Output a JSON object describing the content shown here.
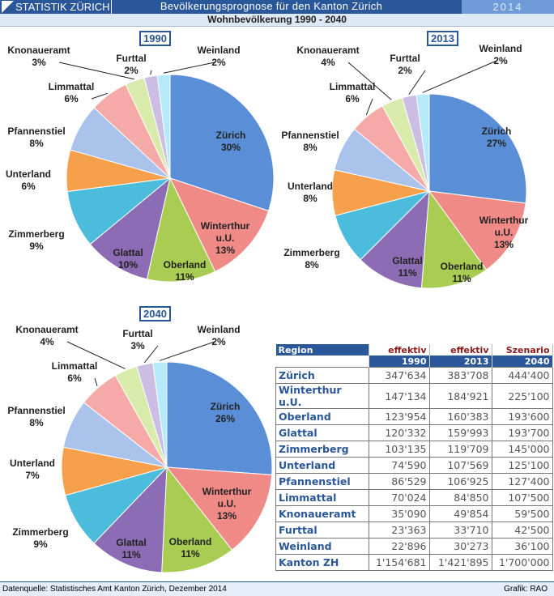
{
  "header": {
    "brand": "STATISTIK ZÜRICH",
    "title": "Bevölkerungsprognose für den Kanton Zürich",
    "year": "2014",
    "subtitle": "Wohnbevölkerung 1990 - 2040"
  },
  "chart_data": [
    {
      "type": "pie",
      "title": "1990",
      "categories": [
        "Zürich",
        "Winterthur u.U.",
        "Oberland",
        "Glattal",
        "Zimmerberg",
        "Unterland",
        "Pfannenstiel",
        "Limmattal",
        "Knonaueramt",
        "Furttal",
        "Weinland"
      ],
      "values": [
        347634,
        147134,
        123954,
        120332,
        103135,
        74590,
        86529,
        70024,
        35090,
        23363,
        22896
      ],
      "labels": [
        "30%",
        "13%",
        "11%",
        "10%",
        "9%",
        "6%",
        "8%",
        "6%",
        "3%",
        "2%",
        "2%"
      ]
    },
    {
      "type": "pie",
      "title": "2013",
      "categories": [
        "Zürich",
        "Winterthur u.U.",
        "Oberland",
        "Glattal",
        "Zimmerberg",
        "Unterland",
        "Pfannenstiel",
        "Limmattal",
        "Knonaueramt",
        "Furttal",
        "Weinland"
      ],
      "values": [
        383708,
        184921,
        160383,
        159993,
        119709,
        107569,
        106925,
        84850,
        49854,
        33710,
        30273
      ],
      "labels": [
        "27%",
        "13%",
        "11%",
        "11%",
        "8%",
        "8%",
        "8%",
        "6%",
        "4%",
        "2%",
        "2%"
      ]
    },
    {
      "type": "pie",
      "title": "2040",
      "categories": [
        "Zürich",
        "Winterthur u.U.",
        "Oberland",
        "Glattal",
        "Zimmerberg",
        "Unterland",
        "Pfannenstiel",
        "Limmattal",
        "Knonaueramt",
        "Furttal",
        "Weinland"
      ],
      "values": [
        444400,
        225100,
        193600,
        193700,
        145000,
        125100,
        127400,
        107500,
        59500,
        42500,
        36100
      ],
      "labels": [
        "26%",
        "13%",
        "11%",
        "11%",
        "9%",
        "7%",
        "8%",
        "6%",
        "4%",
        "3%",
        "2%"
      ]
    }
  ],
  "colors": [
    "#5a8fd8",
    "#f08a86",
    "#a9cc52",
    "#8c6cb4",
    "#4cbcdc",
    "#f6a04c",
    "#a9c3ec",
    "#f5aaa8",
    "#d9ebab",
    "#cbbde4",
    "#b5eaf8"
  ],
  "table": {
    "header1": [
      "Region",
      "effektiv",
      "effektiv",
      "Szenario"
    ],
    "header2": [
      "1990",
      "2013",
      "2040"
    ],
    "rows": [
      [
        "Zürich",
        "347'634",
        "383'708",
        "444'400"
      ],
      [
        "Winterthur u.U.",
        "147'134",
        "184'921",
        "225'100"
      ],
      [
        "Oberland",
        "123'954",
        "160'383",
        "193'600"
      ],
      [
        "Glattal",
        "120'332",
        "159'993",
        "193'700"
      ],
      [
        "Zimmerberg",
        "103'135",
        "119'709",
        "145'000"
      ],
      [
        "Unterland",
        "74'590",
        "107'569",
        "125'100"
      ],
      [
        "Pfannenstiel",
        "86'529",
        "106'925",
        "127'400"
      ],
      [
        "Limmattal",
        "70'024",
        "84'850",
        "107'500"
      ],
      [
        "Knonaueramt",
        "35'090",
        "49'854",
        "59'500"
      ],
      [
        "Furttal",
        "23'363",
        "33'710",
        "42'500"
      ],
      [
        "Weinland",
        "22'896",
        "30'273",
        "36'100"
      ],
      [
        "Kanton ZH",
        "1'154'681",
        "1'421'895",
        "1'700'000"
      ]
    ]
  },
  "footer": {
    "source": "Datenquelle: Statistisches Amt Kanton Zürich, Dezember 2014",
    "credit": "Grafik: RAO"
  }
}
